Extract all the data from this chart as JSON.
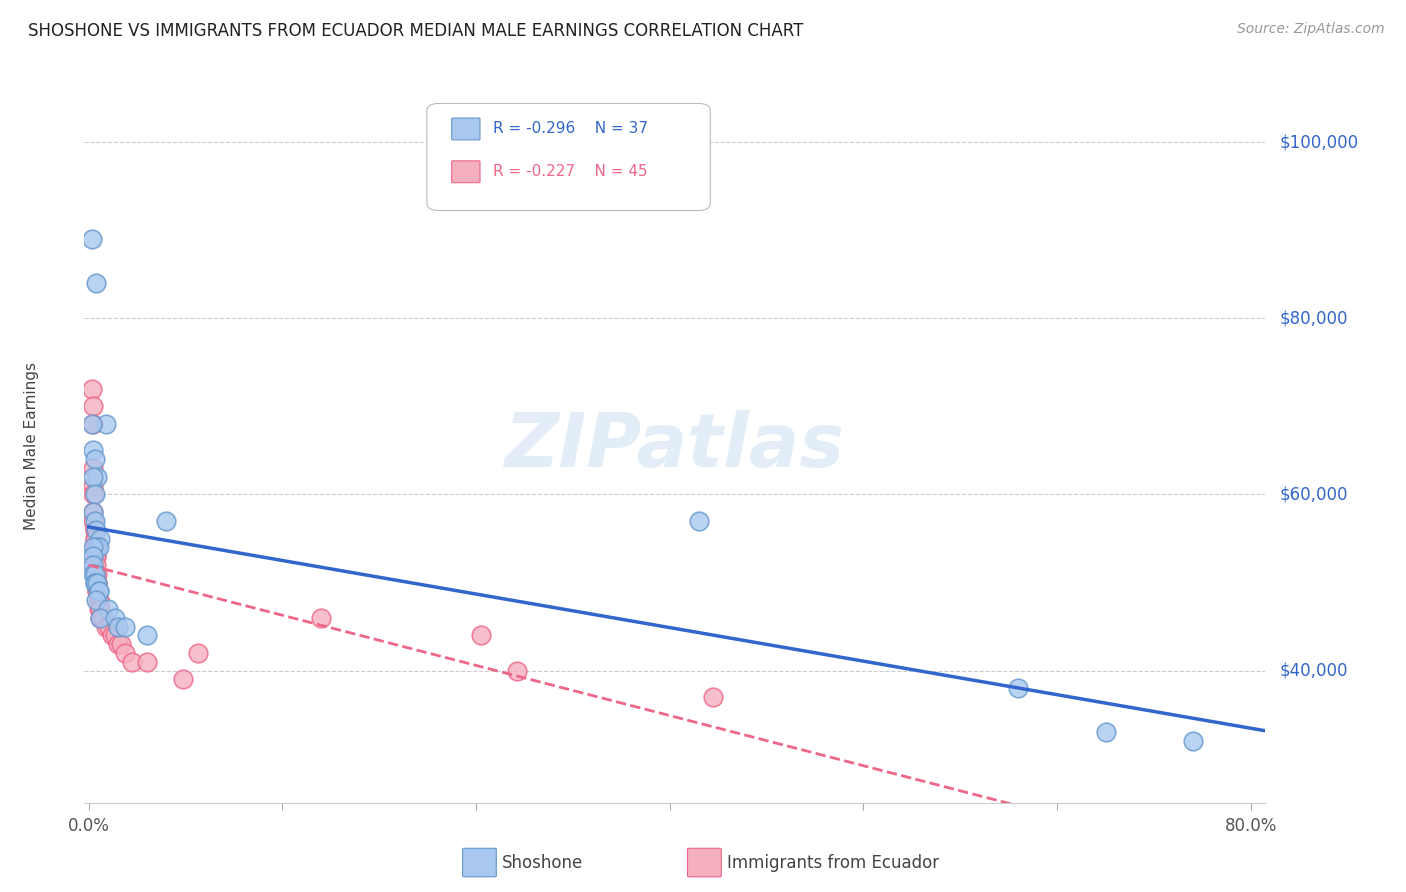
{
  "title": "SHOSHONE VS IMMIGRANTS FROM ECUADOR MEDIAN MALE EARNINGS CORRELATION CHART",
  "source": "Source: ZipAtlas.com",
  "ylabel": "Median Male Earnings",
  "ytick_labels": [
    "$40,000",
    "$60,000",
    "$80,000",
    "$100,000"
  ],
  "ytick_values": [
    40000,
    60000,
    80000,
    100000
  ],
  "ymin": 25000,
  "ymax": 106000,
  "xmin": -0.003,
  "xmax": 0.81,
  "legend_r1": "R = -0.296",
  "legend_n1": "N = 37",
  "legend_r2": "R = -0.227",
  "legend_n2": "N = 45",
  "color_blue": "#A8C8F0",
  "color_pink": "#F5B0C0",
  "line_blue": "#3366CC",
  "line_pink": "#EE6688",
  "background": "#FFFFFF",
  "watermark": "ZIPatlas",
  "shoshone_x": [
    0.002,
    0.005,
    0.012,
    0.002,
    0.003,
    0.004,
    0.006,
    0.003,
    0.004,
    0.003,
    0.004,
    0.005,
    0.008,
    0.006,
    0.007,
    0.003,
    0.003,
    0.003,
    0.003,
    0.004,
    0.004,
    0.004,
    0.006,
    0.007,
    0.007,
    0.005,
    0.013,
    0.008,
    0.018,
    0.02,
    0.025,
    0.04,
    0.053,
    0.42,
    0.64,
    0.7,
    0.76
  ],
  "shoshone_y": [
    89000,
    84000,
    68000,
    68000,
    65000,
    64000,
    62000,
    62000,
    60000,
    58000,
    57000,
    56000,
    55000,
    54000,
    54000,
    54000,
    53000,
    52000,
    51000,
    51000,
    50000,
    50000,
    50000,
    49000,
    49000,
    48000,
    47000,
    46000,
    46000,
    45000,
    45000,
    44000,
    57000,
    57000,
    38000,
    33000,
    32000
  ],
  "ecuador_x": [
    0.002,
    0.003,
    0.003,
    0.003,
    0.003,
    0.003,
    0.003,
    0.003,
    0.004,
    0.004,
    0.004,
    0.004,
    0.004,
    0.004,
    0.005,
    0.005,
    0.005,
    0.005,
    0.005,
    0.006,
    0.006,
    0.006,
    0.006,
    0.006,
    0.007,
    0.007,
    0.007,
    0.008,
    0.008,
    0.01,
    0.012,
    0.014,
    0.016,
    0.018,
    0.02,
    0.022,
    0.025,
    0.03,
    0.04,
    0.065,
    0.075,
    0.16,
    0.27,
    0.295,
    0.43
  ],
  "ecuador_y": [
    72000,
    70000,
    68000,
    63000,
    61000,
    60000,
    58000,
    57000,
    56000,
    56000,
    55000,
    55000,
    54000,
    54000,
    54000,
    53000,
    53000,
    52000,
    51000,
    51000,
    50000,
    50000,
    49000,
    49000,
    48000,
    48000,
    47000,
    47000,
    46000,
    46000,
    45000,
    45000,
    44000,
    44000,
    43000,
    43000,
    42000,
    41000,
    41000,
    39000,
    42000,
    46000,
    44000,
    40000,
    37000
  ]
}
